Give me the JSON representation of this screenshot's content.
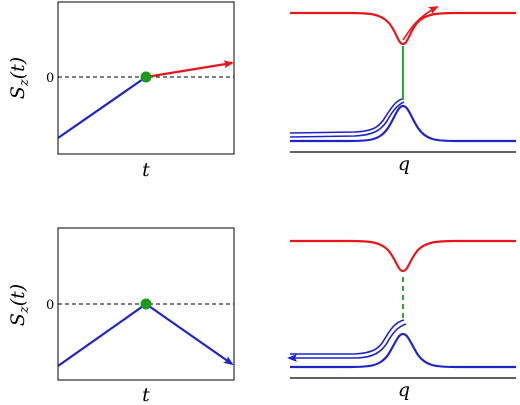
{
  "panels": {
    "top_left": {
      "ylabel": "S_z(t)",
      "ylabel_main": "S",
      "ylabel_sub": "z",
      "ylabel_arg": "(t)",
      "ytick": "0",
      "xlabel": "t",
      "line_color": "#1f24c9",
      "arrow_color": "#e8161a",
      "dot_color": "#1a9a1a"
    },
    "top_right": {
      "xlabel": "q",
      "upper_band_color": "#e8161a",
      "lower_band_color": "#1f24c9",
      "transition_color": "#1a9a1a",
      "transition_style": "solid"
    },
    "bottom_left": {
      "ylabel": "S_z(t)",
      "ylabel_main": "S",
      "ylabel_sub": "z",
      "ylabel_arg": "(t)",
      "ytick": "0",
      "xlabel": "t",
      "line_color": "#1f24c9",
      "dot_color": "#1a9a1a"
    },
    "bottom_right": {
      "xlabel": "q",
      "upper_band_color": "#e8161a",
      "lower_band_color": "#1f24c9",
      "transition_color": "#1a9a1a",
      "transition_style": "dashed"
    }
  }
}
